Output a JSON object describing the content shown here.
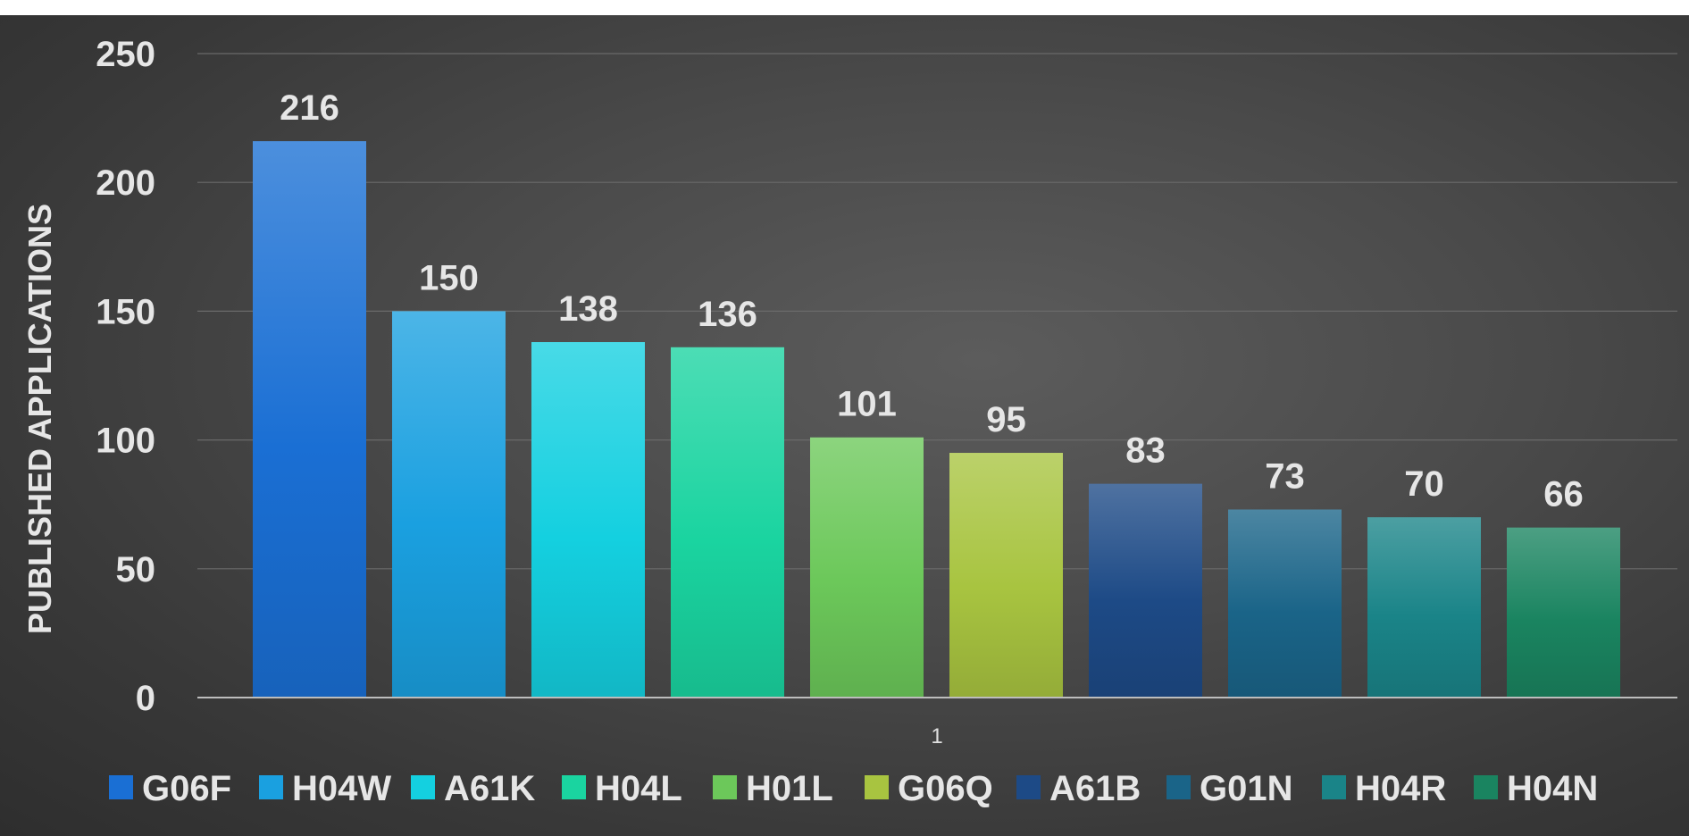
{
  "chart_data": {
    "type": "bar",
    "categories": [
      "1"
    ],
    "series": [
      {
        "name": "G06F",
        "values": [
          216
        ],
        "color": "#1a6fd4"
      },
      {
        "name": "H04W",
        "values": [
          150
        ],
        "color": "#1aa0e0"
      },
      {
        "name": "A61K",
        "values": [
          138
        ],
        "color": "#14d0e0"
      },
      {
        "name": "H04L",
        "values": [
          136
        ],
        "color": "#1ad4a0"
      },
      {
        "name": "H01L",
        "values": [
          101
        ],
        "color": "#6cc85a"
      },
      {
        "name": "G06Q",
        "values": [
          95
        ],
        "color": "#a8c440"
      },
      {
        "name": "A61B",
        "values": [
          83
        ],
        "color": "#1d4a86"
      },
      {
        "name": "G01N",
        "values": [
          73
        ],
        "color": "#1a6488"
      },
      {
        "name": "H04R",
        "values": [
          70
        ],
        "color": "#1a8488"
      },
      {
        "name": "H04N",
        "values": [
          66
        ],
        "color": "#1a8460"
      }
    ],
    "xlabel": "",
    "ylabel": "PUBLISHED APPLICATIONS",
    "ylim": [
      0,
      250
    ],
    "yticks": [
      "0",
      "50",
      "100",
      "150",
      "200",
      "250"
    ],
    "grid": true,
    "legend": "bottom"
  }
}
